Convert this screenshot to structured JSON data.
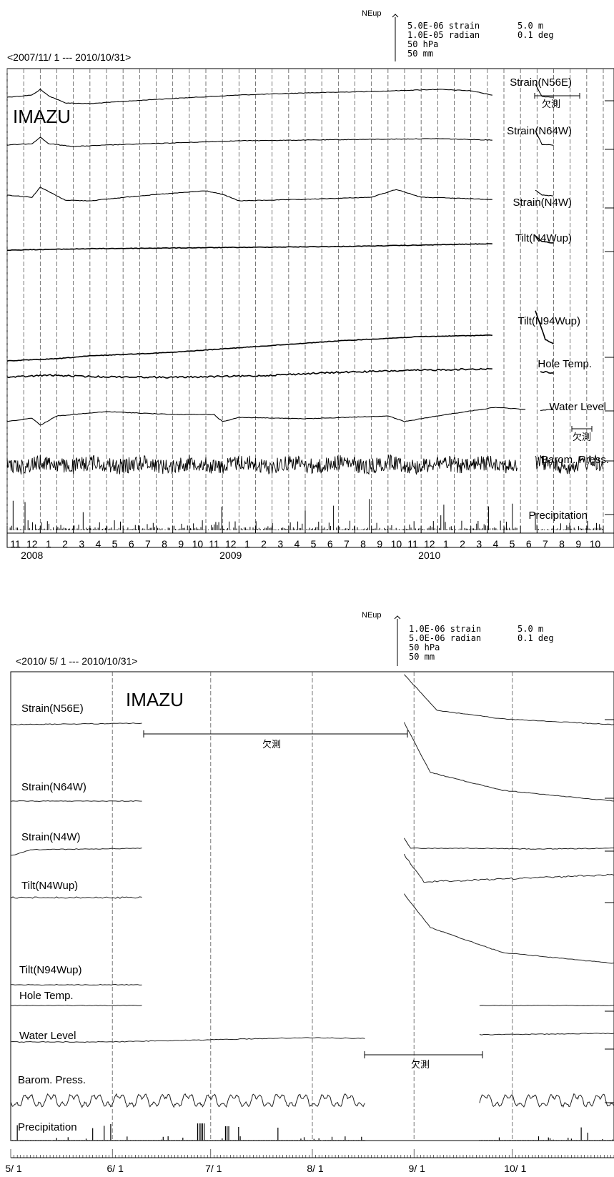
{
  "chart_data": [
    {
      "type": "line",
      "title": "<2007/11/ 1 --- 2010/10/31>",
      "station": "IMAZU",
      "scale_header": "NEup",
      "scale_legend": [
        "5.0E-06 strain",
        "1.0E-05 radian",
        "50 hPa",
        "50 mm",
        "5.0 m",
        "0.1 deg"
      ],
      "grid": true,
      "x_unit": "month",
      "xlim": [
        "2007-11-01",
        "2010-10-31"
      ],
      "month_ticks": [
        "11",
        "12",
        "1",
        "2",
        "3",
        "4",
        "5",
        "6",
        "7",
        "8",
        "9",
        "10",
        "11",
        "12",
        "1",
        "2",
        "3",
        "4",
        "5",
        "6",
        "7",
        "8",
        "9",
        "10",
        "11",
        "12",
        "1",
        "2",
        "3",
        "4",
        "5",
        "6",
        "7",
        "8",
        "9",
        "10"
      ],
      "year_labels": [
        {
          "label": "2008",
          "at_month": 2
        },
        {
          "label": "2009",
          "at_month": 14
        },
        {
          "label": "2010",
          "at_month": 26
        }
      ],
      "gap_labels": [
        "欠測",
        "欠測"
      ],
      "series": [
        {
          "name": "Strain(N56E)",
          "kind": "line",
          "points": [
            [
              0,
              0
            ],
            [
              1.5,
              -3
            ],
            [
              2,
              -11
            ],
            [
              2.5,
              -2
            ],
            [
              3.5,
              8
            ],
            [
              5,
              9
            ],
            [
              9,
              3
            ],
            [
              14,
              -3
            ],
            [
              18,
              -6
            ],
            [
              22,
              -8
            ],
            [
              26,
              -11
            ],
            [
              28,
              -9
            ],
            [
              29.3,
              -3
            ]
          ],
          "gap": [
            29.3,
            31.9
          ],
          "after": [
            [
              31.9,
              -18
            ],
            [
              32.3,
              -1
            ],
            [
              33,
              0
            ]
          ]
        },
        {
          "name": "Strain(N64W)",
          "kind": "line",
          "points": [
            [
              0,
              0
            ],
            [
              1.5,
              -2
            ],
            [
              2,
              -11
            ],
            [
              2.5,
              -2
            ],
            [
              4,
              2
            ],
            [
              6,
              0
            ],
            [
              10,
              -3
            ],
            [
              14,
              -6
            ],
            [
              18,
              -7
            ],
            [
              22,
              -8
            ],
            [
              26,
              -9
            ],
            [
              29.3,
              -7
            ]
          ],
          "gap": [
            29.3,
            31.9
          ],
          "after": [
            [
              31.9,
              -20
            ],
            [
              32.3,
              -1
            ],
            [
              33,
              0
            ]
          ]
        },
        {
          "name": "Strain(N4W)",
          "kind": "line",
          "points": [
            [
              0,
              -1
            ],
            [
              1.5,
              2
            ],
            [
              2,
              -12
            ],
            [
              2.5,
              -6
            ],
            [
              3.5,
              6
            ],
            [
              5,
              7
            ],
            [
              8,
              0
            ],
            [
              12,
              -7
            ],
            [
              13,
              -2
            ],
            [
              14,
              7
            ],
            [
              18,
              5
            ],
            [
              22,
              2
            ],
            [
              23.5,
              -9
            ],
            [
              25,
              2
            ],
            [
              26.5,
              3
            ],
            [
              29.3,
              5
            ]
          ],
          "gap": [
            29.3,
            31.9
          ],
          "after": [
            [
              31.9,
              -8
            ],
            [
              32.3,
              -1
            ],
            [
              33,
              0
            ]
          ]
        },
        {
          "name": "Tilt(N4Wup)",
          "kind": "line",
          "points": [
            [
              0,
              0
            ],
            [
              5,
              -2
            ],
            [
              10,
              -3
            ],
            [
              15,
              -4
            ],
            [
              20,
              -5
            ],
            [
              25,
              -7
            ],
            [
              29.3,
              -9
            ]
          ],
          "gap": [
            29.3,
            31.9
          ],
          "after": [
            [
              31.9,
              -20
            ],
            [
              32.3,
              -12
            ],
            [
              33,
              -10
            ]
          ]
        },
        {
          "name": "Tilt(N94Wup)",
          "kind": "line",
          "points": [
            [
              0,
              0
            ],
            [
              3,
              -3
            ],
            [
              5,
              -7
            ],
            [
              10,
              -12
            ],
            [
              15,
              -20
            ],
            [
              20,
              -28
            ],
            [
              25,
              -34
            ],
            [
              29.3,
              -36
            ]
          ],
          "gap": [
            29.3,
            31.9
          ],
          "after": [
            [
              31.9,
              -70
            ],
            [
              32.5,
              -30
            ],
            [
              33,
              -24
            ]
          ]
        },
        {
          "name": "Hole Temp.",
          "kind": "line",
          "points": [
            [
              0,
              0
            ],
            [
              2.5,
              -3
            ],
            [
              5,
              -1
            ],
            [
              10,
              0
            ],
            [
              15,
              -2
            ],
            [
              20,
              -7
            ],
            [
              25,
              -10
            ],
            [
              29.3,
              -12
            ]
          ],
          "gap": [
            29.3,
            32.2
          ],
          "after": [
            [
              32.2,
              -8
            ],
            [
              33,
              -6
            ]
          ]
        },
        {
          "name": "Water Level",
          "kind": "line",
          "points": [
            [
              0,
              0
            ],
            [
              1.5,
              -5
            ],
            [
              2,
              5
            ],
            [
              3,
              -8
            ],
            [
              6,
              -14
            ],
            [
              10,
              -10
            ],
            [
              12.5,
              -10
            ],
            [
              13,
              0
            ],
            [
              14,
              -6
            ],
            [
              18,
              -4
            ],
            [
              23,
              -8
            ],
            [
              24,
              0
            ],
            [
              26.5,
              -10
            ],
            [
              29.5,
              -20
            ],
            [
              31.3,
              -17
            ]
          ],
          "gap": [
            31.3,
            32.2
          ],
          "after": [
            [
              32.2,
              -16
            ],
            [
              33,
              -17
            ]
          ]
        },
        {
          "name": "Barom. Press.",
          "kind": "noise",
          "amplitude": 22,
          "gap": [
            30.8,
            31.9
          ]
        },
        {
          "name": "Precipitation",
          "kind": "bars",
          "gap": [
            30.8,
            31.9
          ]
        }
      ]
    },
    {
      "type": "line",
      "title": "<2010/ 5/ 1 --- 2010/10/31>",
      "station": "IMAZU",
      "scale_header": "NEup",
      "scale_legend": [
        "1.0E-06 strain",
        "5.0E-06 radian",
        "50 hPa",
        "50 mm",
        "5.0 m",
        "0.1 deg"
      ],
      "grid": true,
      "x_unit": "day",
      "xlim": [
        "2010-05-01",
        "2010-10-31"
      ],
      "ticks": [
        {
          "label": "5/ 1",
          "day": 0
        },
        {
          "label": "6/ 1",
          "day": 31
        },
        {
          "label": "7/ 1",
          "day": 61
        },
        {
          "label": "8/ 1",
          "day": 92
        },
        {
          "label": "9/ 1",
          "day": 123
        },
        {
          "label": "10/ 1",
          "day": 153
        }
      ],
      "gap_labels": [
        "欠測",
        "欠測"
      ],
      "series": [
        {
          "name": "Strain(N56E)",
          "kind": "line",
          "points": [
            [
              0,
              0
            ],
            [
              40,
              -2
            ]
          ],
          "gap": [
            40,
            120
          ],
          "after": [
            [
              120,
              -70
            ],
            [
              130,
              -20
            ],
            [
              150,
              -8
            ],
            [
              184,
              0
            ]
          ]
        },
        {
          "name": "Strain(N64W)",
          "kind": "line",
          "points": [
            [
              0,
              0
            ],
            [
              40,
              0
            ]
          ],
          "gap": [
            40,
            120
          ],
          "after": [
            [
              120,
              -110
            ],
            [
              128,
              -40
            ],
            [
              150,
              -15
            ],
            [
              184,
              0
            ]
          ]
        },
        {
          "name": "Strain(N4W)",
          "kind": "line",
          "points": [
            [
              0,
              0
            ],
            [
              2,
              -2
            ],
            [
              6,
              -8
            ],
            [
              40,
              -10
            ]
          ],
          "gap": [
            40,
            120
          ],
          "after": [
            [
              120,
              -24
            ],
            [
              122,
              -10
            ],
            [
              140,
              -10
            ],
            [
              160,
              -9
            ],
            [
              184,
              -10
            ]
          ]
        },
        {
          "name": "Tilt(N4Wup)",
          "kind": "line",
          "points": [
            [
              0,
              0
            ],
            [
              40,
              0
            ]
          ],
          "gap": [
            40,
            120
          ],
          "after": [
            [
              120,
              -60
            ],
            [
              126,
              -22
            ],
            [
              150,
              -26
            ],
            [
              184,
              -32
            ]
          ]
        },
        {
          "name": "Tilt(N94Wup)",
          "kind": "line",
          "points": [
            [
              0,
              0
            ],
            [
              40,
              0
            ]
          ],
          "gap": [
            40,
            120
          ],
          "after": [
            [
              120,
              -127
            ],
            [
              128,
              -80
            ],
            [
              150,
              -45
            ],
            [
              184,
              -30
            ]
          ]
        },
        {
          "name": "Hole Temp.",
          "kind": "line",
          "points": [
            [
              0,
              0
            ],
            [
              40,
              0
            ]
          ],
          "gap": [
            40,
            143
          ],
          "after": [
            [
              143,
              0
            ],
            [
              184,
              0
            ]
          ]
        },
        {
          "name": "Water Level",
          "kind": "line",
          "points": [
            [
              0,
              0
            ],
            [
              30,
              0
            ],
            [
              60,
              -3
            ],
            [
              90,
              -6
            ],
            [
              108,
              -5
            ]
          ],
          "gap": [
            108,
            143
          ],
          "after": [
            [
              143,
              -10
            ],
            [
              184,
              -12
            ]
          ]
        },
        {
          "name": "Barom. Press.",
          "kind": "wave",
          "amplitude": 14,
          "gap": [
            108,
            143
          ]
        },
        {
          "name": "Precipitation",
          "kind": "bars",
          "gap": [
            108,
            143
          ]
        }
      ]
    }
  ]
}
